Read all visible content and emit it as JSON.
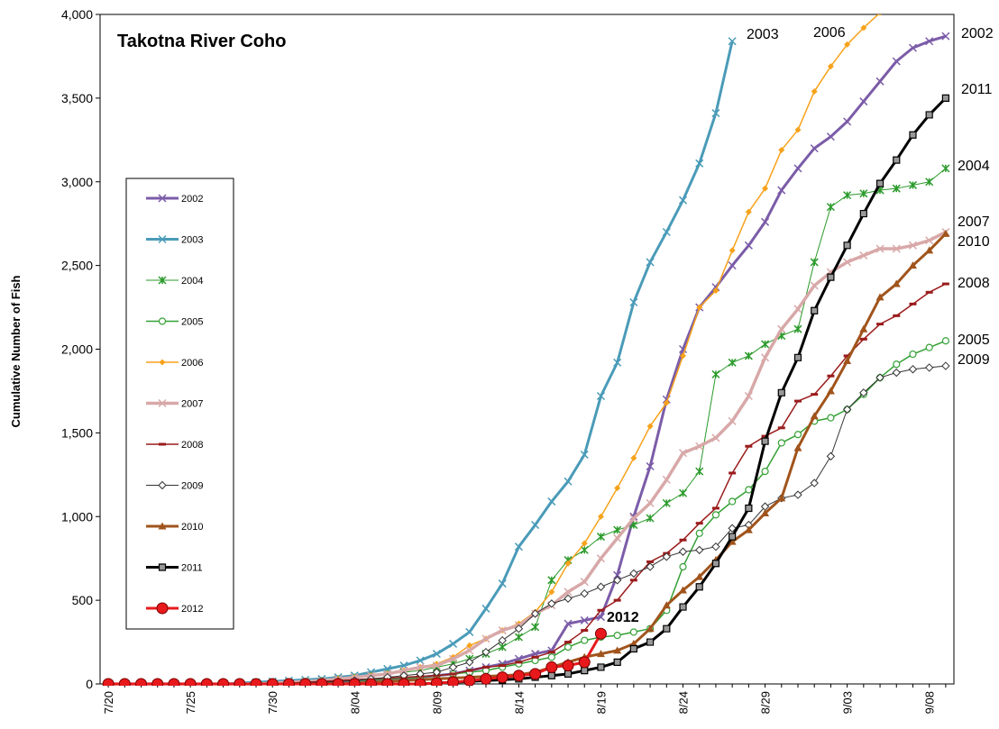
{
  "chart_data": {
    "type": "line",
    "title": "Takotna  River Coho",
    "y_label": "Cumulative Number of Fish",
    "categories": [
      "7/20",
      null,
      null,
      null,
      null,
      "7/25",
      null,
      null,
      null,
      null,
      "7/30",
      null,
      null,
      null,
      null,
      "8/04",
      null,
      null,
      null,
      null,
      "8/09",
      null,
      null,
      null,
      null,
      "8/14",
      null,
      null,
      null,
      null,
      "8/19",
      null,
      null,
      null,
      null,
      "8/24",
      null,
      null,
      null,
      null,
      "8/29",
      null,
      null,
      null,
      null,
      "9/03",
      null,
      null,
      null,
      null,
      "9/08",
      null
    ],
    "ylim": [
      0,
      4000
    ],
    "yticks": [
      0,
      500,
      {
        "value": 1000,
        "label": "1,000"
      },
      {
        "value": 1500,
        "label": "1,500"
      },
      {
        "value": 2000,
        "label": "2,000"
      },
      {
        "value": 2500,
        "label": "2,500"
      },
      {
        "value": 3000,
        "label": "3,000"
      },
      {
        "value": 3500,
        "label": "3,500"
      },
      {
        "value": 4000,
        "label": "4,000"
      }
    ],
    "grid": false,
    "legend": "left",
    "series": [
      {
        "name": "2002",
        "color": "#7b5ca8",
        "width": 3,
        "marker": "x",
        "values": [
          0,
          0,
          0,
          0,
          0,
          0,
          0,
          0,
          0,
          0,
          0,
          5,
          5,
          10,
          15,
          20,
          25,
          30,
          35,
          40,
          50,
          60,
          80,
          100,
          120,
          150,
          180,
          200,
          360,
          380,
          400,
          650,
          1000,
          1300,
          1700,
          2000,
          2250,
          2370,
          2500,
          2620,
          2760,
          2950,
          3080,
          3200,
          3270,
          3360,
          3480,
          3600,
          3720,
          3800,
          3840,
          3870
        ]
      },
      {
        "name": "2003",
        "color": "#4a9bb8",
        "width": 3,
        "marker": "x",
        "values": [
          0,
          0,
          0,
          0,
          0,
          0,
          0,
          0,
          5,
          10,
          15,
          20,
          25,
          30,
          40,
          50,
          70,
          90,
          110,
          140,
          180,
          240,
          310,
          450,
          600,
          820,
          950,
          1090,
          1210,
          1370,
          1720,
          1920,
          2280,
          2520,
          2700,
          2890,
          3110,
          3410,
          3840,
          null,
          null,
          null,
          null,
          null,
          null,
          null,
          null,
          null,
          null,
          null,
          null,
          null
        ]
      },
      {
        "name": "2004",
        "color": "#2a9a2a",
        "width": 1,
        "marker": "star",
        "values": [
          0,
          0,
          0,
          0,
          0,
          0,
          0,
          0,
          0,
          5,
          5,
          10,
          15,
          20,
          30,
          40,
          50,
          60,
          70,
          80,
          100,
          120,
          150,
          180,
          220,
          280,
          340,
          620,
          740,
          800,
          880,
          920,
          950,
          990,
          1080,
          1140,
          1270,
          1850,
          1920,
          1960,
          2030,
          2080,
          2120,
          2520,
          2850,
          2920,
          2930,
          2950,
          2960,
          2980,
          3000,
          3080
        ]
      },
      {
        "name": "2005",
        "color": "#34a034",
        "width": 1.5,
        "marker": "circle",
        "values": [
          0,
          0,
          0,
          0,
          0,
          0,
          0,
          0,
          0,
          0,
          5,
          5,
          10,
          10,
          15,
          20,
          25,
          30,
          35,
          40,
          50,
          60,
          70,
          80,
          100,
          120,
          140,
          160,
          220,
          260,
          280,
          290,
          310,
          330,
          440,
          700,
          900,
          1010,
          1090,
          1160,
          1270,
          1440,
          1490,
          1570,
          1590,
          1640,
          1730,
          1830,
          1910,
          1970,
          2010,
          2050
        ]
      },
      {
        "name": "2006",
        "color": "#f7a21b",
        "width": 1.5,
        "marker": "diamond-fill",
        "values": [
          0,
          0,
          0,
          0,
          0,
          0,
          0,
          0,
          0,
          0,
          5,
          10,
          15,
          20,
          30,
          40,
          50,
          60,
          80,
          100,
          120,
          160,
          230,
          270,
          320,
          360,
          430,
          550,
          720,
          840,
          1000,
          1170,
          1350,
          1540,
          1680,
          1960,
          2250,
          2350,
          2590,
          2820,
          2960,
          3190,
          3310,
          3540,
          3690,
          3820,
          3920,
          4010,
          null,
          null,
          null,
          null
        ]
      },
      {
        "name": "2007",
        "color": "#d8a8a8",
        "width": 3.5,
        "marker": "x",
        "values": [
          0,
          0,
          0,
          0,
          0,
          0,
          0,
          0,
          0,
          0,
          5,
          10,
          15,
          20,
          30,
          40,
          50,
          60,
          80,
          100,
          110,
          150,
          200,
          270,
          320,
          350,
          420,
          470,
          550,
          610,
          750,
          870,
          990,
          1080,
          1220,
          1380,
          1420,
          1470,
          1570,
          1720,
          1950,
          2120,
          2240,
          2380,
          2460,
          2520,
          2560,
          2600,
          2600,
          2620,
          2650,
          2700
        ]
      },
      {
        "name": "2008",
        "color": "#9b1c1c",
        "width": 1.5,
        "marker": "dash",
        "values": [
          0,
          0,
          0,
          0,
          0,
          0,
          0,
          0,
          0,
          0,
          0,
          5,
          10,
          15,
          20,
          25,
          30,
          35,
          40,
          45,
          50,
          60,
          80,
          100,
          110,
          130,
          160,
          190,
          250,
          320,
          440,
          500,
          620,
          730,
          780,
          860,
          960,
          1050,
          1260,
          1420,
          1480,
          1530,
          1690,
          1730,
          1840,
          1960,
          2060,
          2150,
          2200,
          2270,
          2340,
          2390
        ]
      },
      {
        "name": "2009",
        "color": "#333333",
        "width": 1,
        "marker": "diamond",
        "values": [
          0,
          0,
          0,
          0,
          0,
          0,
          0,
          0,
          0,
          0,
          5,
          5,
          10,
          10,
          15,
          20,
          30,
          40,
          50,
          60,
          70,
          100,
          130,
          190,
          260,
          330,
          420,
          480,
          510,
          540,
          580,
          620,
          660,
          700,
          760,
          790,
          800,
          820,
          930,
          950,
          1060,
          1110,
          1130,
          1200,
          1360,
          1640,
          1740,
          1830,
          1860,
          1880,
          1890,
          1900
        ]
      },
      {
        "name": "2010",
        "color": "#a0541c",
        "width": 3,
        "marker": "triangle",
        "values": [
          0,
          0,
          0,
          0,
          0,
          0,
          0,
          0,
          0,
          0,
          0,
          0,
          0,
          0,
          0,
          5,
          10,
          15,
          20,
          25,
          30,
          35,
          40,
          45,
          50,
          55,
          70,
          100,
          130,
          160,
          180,
          200,
          240,
          330,
          470,
          560,
          640,
          740,
          850,
          920,
          1020,
          1110,
          1410,
          1600,
          1750,
          1930,
          2120,
          2310,
          2390,
          2500,
          2590,
          2690
        ]
      },
      {
        "name": "2011",
        "color": "#000000",
        "width": 3,
        "marker": "square",
        "values": [
          0,
          0,
          0,
          0,
          0,
          0,
          0,
          0,
          0,
          0,
          0,
          0,
          0,
          0,
          0,
          0,
          0,
          0,
          0,
          0,
          5,
          10,
          15,
          20,
          25,
          30,
          40,
          50,
          60,
          80,
          100,
          130,
          210,
          250,
          330,
          460,
          580,
          720,
          880,
          1050,
          1450,
          1740,
          1950,
          2230,
          2430,
          2620,
          2810,
          2990,
          3130,
          3280,
          3400,
          3500
        ]
      },
      {
        "name": "2012",
        "color": "#e8191c",
        "width": 3,
        "marker": "dot",
        "values": [
          0,
          0,
          0,
          0,
          0,
          0,
          0,
          0,
          0,
          0,
          0,
          0,
          0,
          0,
          0,
          0,
          0,
          0,
          0,
          0,
          5,
          10,
          20,
          30,
          40,
          50,
          60,
          100,
          110,
          130,
          300,
          null,
          null,
          null,
          null,
          null,
          null,
          null,
          null,
          null,
          null,
          null,
          null,
          null,
          null,
          null,
          null,
          null,
          null,
          null,
          null,
          null
        ]
      }
    ],
    "annotations": [
      "2003",
      "2006",
      "2002",
      "2011",
      "2004",
      "2007",
      "2010",
      "2008",
      "2005",
      "2009",
      "2012"
    ]
  }
}
